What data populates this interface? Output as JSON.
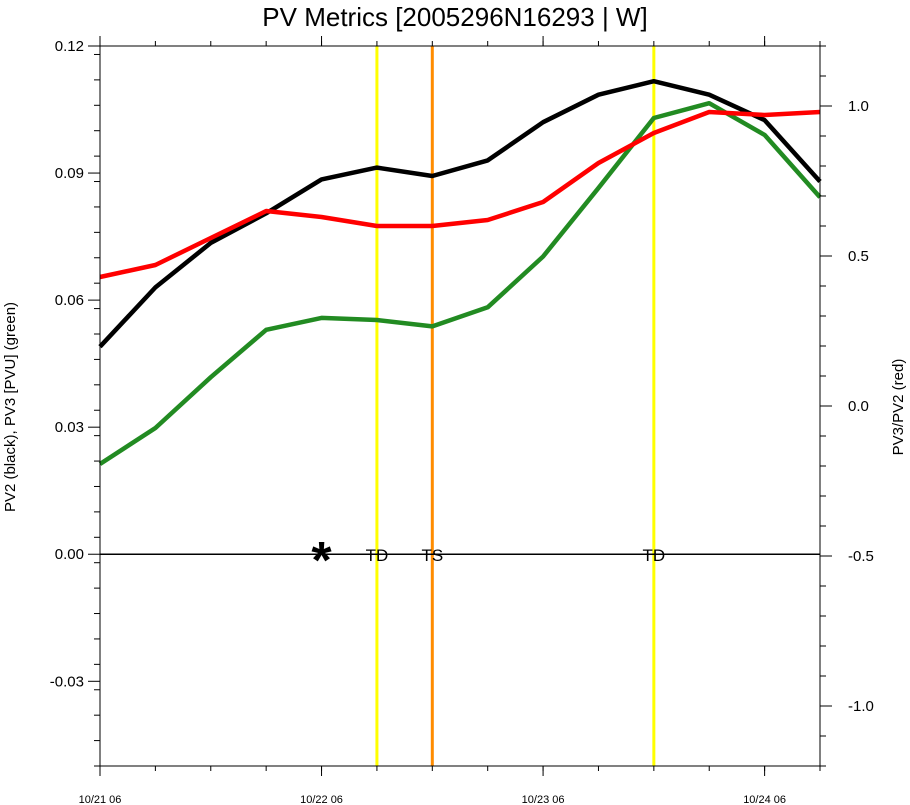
{
  "chart_data": {
    "type": "line",
    "title": "PV Metrics [2005296N16293 | W]",
    "ylabel_left": "PV2 (black), PV3 [PVU] (green)",
    "ylabel_right": "PV3/PV2 (red)",
    "xlabel": "",
    "x_range": [
      0,
      13
    ],
    "ylim_left": [
      -0.05,
      0.12
    ],
    "ylim_right": [
      -1.2,
      1.2
    ],
    "left_ticks": [
      {
        "value": 0.12,
        "label": "0.12"
      },
      {
        "value": 0.09,
        "label": "0.09"
      },
      {
        "value": 0.06,
        "label": "0.06"
      },
      {
        "value": 0.03,
        "label": "0.03"
      },
      {
        "value": 0.0,
        "label": "0.00"
      },
      {
        "value": -0.03,
        "label": "-0.03"
      }
    ],
    "right_ticks": [
      {
        "value": 1.0,
        "label": "1.0"
      },
      {
        "value": 0.5,
        "label": "0.5"
      },
      {
        "value": 0.0,
        "label": "0.0"
      },
      {
        "value": -0.5,
        "label": "-0.5"
      },
      {
        "value": -1.0,
        "label": "-1.0"
      }
    ],
    "x_ticks": [
      {
        "value": 0,
        "label": "10/21 06"
      },
      {
        "value": 4,
        "label": "10/22 06"
      },
      {
        "value": 8,
        "label": "10/23 06"
      },
      {
        "value": 12,
        "label": "10/24 06"
      }
    ],
    "x": [
      0,
      1,
      2,
      3,
      4,
      5,
      6,
      7,
      8,
      9,
      10,
      11,
      12,
      13
    ],
    "series": [
      {
        "color": "#000000",
        "axis": "left",
        "values": [
          0.049,
          0.063,
          0.0735,
          0.0805,
          0.0885,
          0.0913,
          0.0893,
          0.093,
          0.102,
          0.1085,
          0.1117,
          0.1085,
          0.1025,
          0.088
        ]
      },
      {
        "color": "#228b22",
        "axis": "left",
        "values": [
          0.0213,
          0.0298,
          0.0418,
          0.053,
          0.0558,
          0.0553,
          0.0538,
          0.0583,
          0.0703,
          0.0865,
          0.103,
          0.1065,
          0.099,
          0.0843
        ]
      },
      {
        "color": "#ff0000",
        "axis": "right",
        "values": [
          0.43,
          0.47,
          0.56,
          0.65,
          0.63,
          0.6,
          0.6,
          0.62,
          0.68,
          0.81,
          0.91,
          0.98,
          0.97,
          0.98
        ]
      }
    ],
    "vertical_lines": [
      {
        "x": 5.0,
        "color": "#ffff00",
        "label": "TD"
      },
      {
        "x": 6.0,
        "color": "#ff8c00",
        "label": "TS"
      },
      {
        "x": 10.0,
        "color": "#ffff00",
        "label": "TD"
      }
    ],
    "marker": {
      "symbol": "*",
      "x": 4.0,
      "y": 0.0
    },
    "zero_line": 0.0,
    "grid": false
  }
}
